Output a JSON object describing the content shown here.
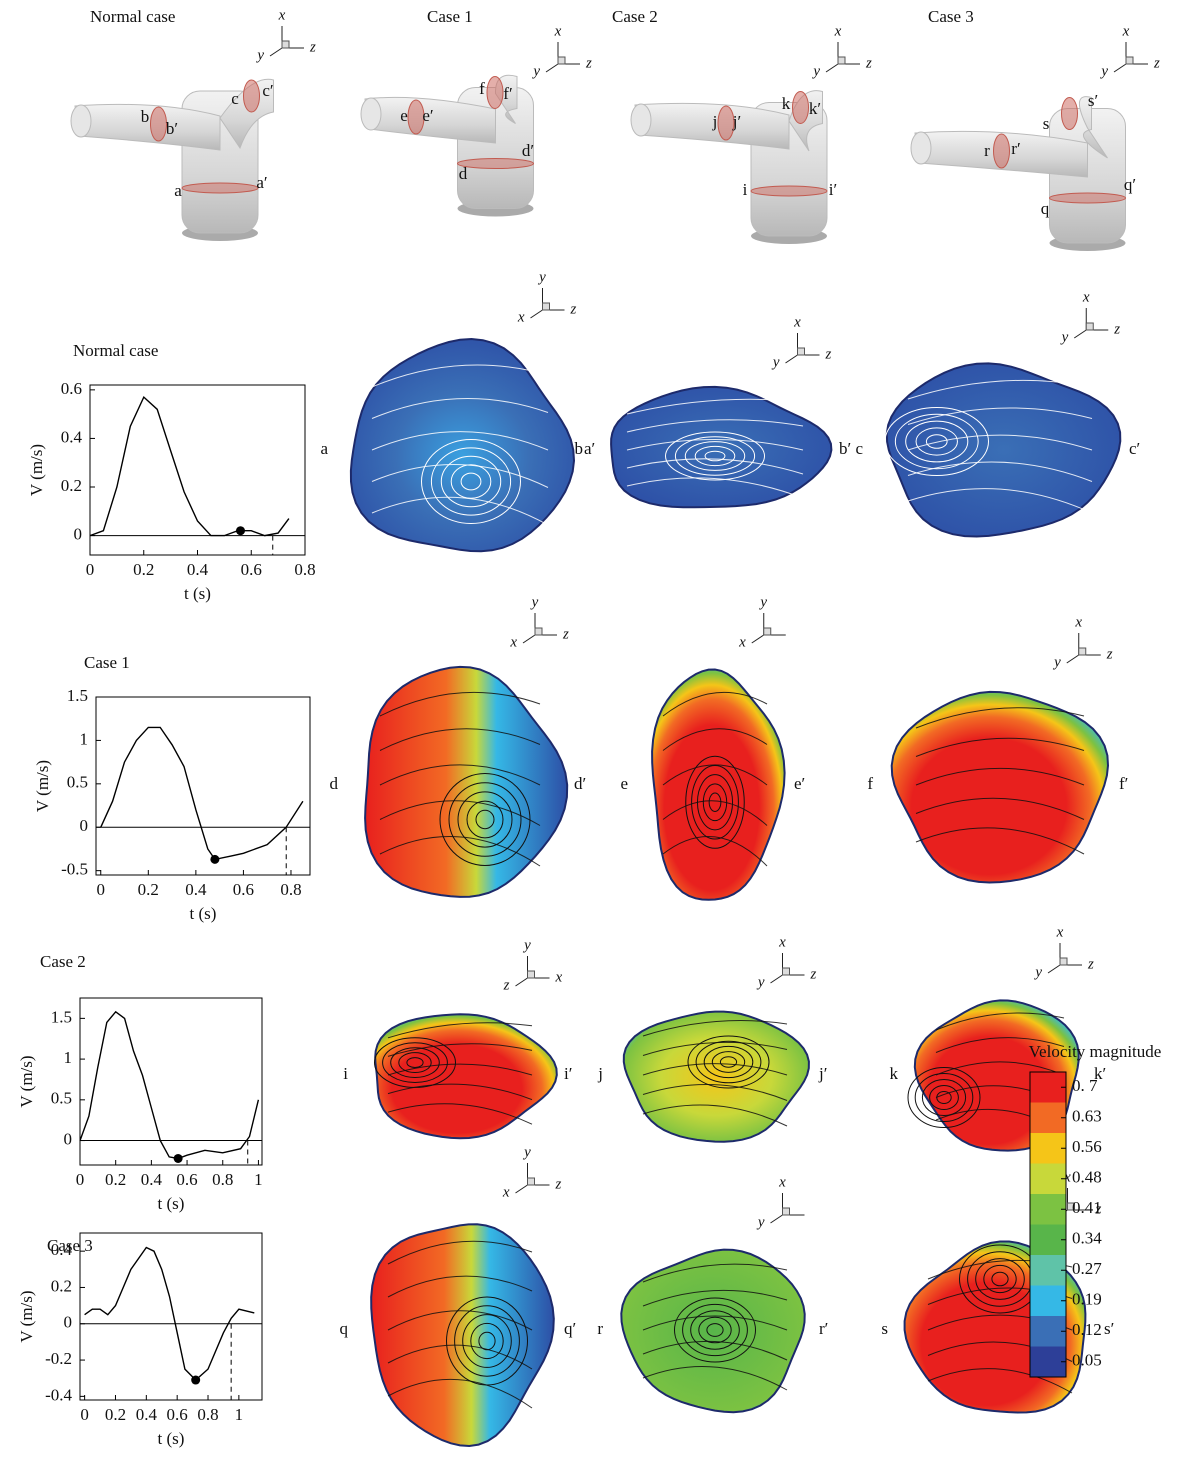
{
  "geometry": [
    {
      "title": "Normal case",
      "labels": [
        "b",
        "b′",
        "c",
        "c′",
        "a",
        "a′"
      ],
      "axes": [
        "x",
        "y",
        "z"
      ]
    },
    {
      "title": "Case 1",
      "labels": [
        "e",
        "e′",
        "f",
        "f′",
        "d",
        "d′"
      ],
      "axes": [
        "x",
        "y",
        "z"
      ]
    },
    {
      "title": "Case 2",
      "labels": [
        "j",
        "j′",
        "k",
        "k′",
        "i",
        "i′"
      ],
      "axes": [
        "x",
        "y",
        "z"
      ]
    },
    {
      "title": "Case 3",
      "labels": [
        "r",
        "r′",
        "s",
        "s′",
        "q",
        "q′"
      ],
      "axes": [
        "x",
        "y",
        "z"
      ]
    }
  ],
  "chart_data": [
    {
      "type": "line",
      "title": "Normal case",
      "xlabel": "t (s)",
      "ylabel": "V (m/s)",
      "color": "#000000",
      "x": [
        0,
        0.05,
        0.1,
        0.15,
        0.2,
        0.25,
        0.3,
        0.35,
        0.4,
        0.45,
        0.5,
        0.55,
        0.6,
        0.65,
        0.7,
        0.74
      ],
      "values": [
        0,
        0.02,
        0.2,
        0.45,
        0.57,
        0.52,
        0.35,
        0.18,
        0.06,
        0.0,
        0.0,
        0.02,
        0.02,
        0.0,
        0.01,
        0.07
      ],
      "marked_point": {
        "x": 0.56,
        "y": 0.02
      },
      "dashed_x": 0.68,
      "xlim": [
        0,
        0.8
      ],
      "ylim": [
        -0.08,
        0.62
      ],
      "xticks": [
        0,
        0.2,
        0.4,
        0.6,
        0.8
      ],
      "yticks": [
        0,
        0.2,
        0.4,
        0.6
      ]
    },
    {
      "type": "line",
      "title": "Case 1",
      "xlabel": "t (s)",
      "ylabel": "V (m/s)",
      "color": "#000000",
      "x": [
        0,
        0.05,
        0.1,
        0.15,
        0.2,
        0.25,
        0.3,
        0.35,
        0.4,
        0.45,
        0.48,
        0.55,
        0.6,
        0.7,
        0.78,
        0.85
      ],
      "values": [
        0,
        0.3,
        0.75,
        1.0,
        1.15,
        1.15,
        0.95,
        0.7,
        0.2,
        -0.25,
        -0.37,
        -0.33,
        -0.3,
        -0.2,
        0,
        0.3
      ],
      "marked_point": {
        "x": 0.48,
        "y": -0.37
      },
      "dashed_x": 0.78,
      "xlim": [
        -0.02,
        0.88
      ],
      "ylim": [
        -0.55,
        1.5
      ],
      "xticks": [
        0,
        0.2,
        0.4,
        0.6,
        0.8
      ],
      "yticks": [
        -0.5,
        0,
        0.5,
        1,
        1.5
      ]
    },
    {
      "type": "line",
      "title": "Case 2",
      "xlabel": "t (s)",
      "ylabel": "V (m/s)",
      "color": "#000000",
      "x": [
        0,
        0.05,
        0.1,
        0.15,
        0.2,
        0.25,
        0.3,
        0.35,
        0.4,
        0.45,
        0.5,
        0.55,
        0.6,
        0.7,
        0.8,
        0.9,
        0.95,
        1.0
      ],
      "values": [
        0,
        0.3,
        0.9,
        1.45,
        1.58,
        1.5,
        1.1,
        0.8,
        0.4,
        0.0,
        -0.2,
        -0.22,
        -0.18,
        -0.12,
        -0.15,
        -0.1,
        0.05,
        0.5
      ],
      "marked_point": {
        "x": 0.55,
        "y": -0.22
      },
      "dashed_x": 0.94,
      "xlim": [
        0,
        1.02
      ],
      "ylim": [
        -0.3,
        1.75
      ],
      "xticks": [
        0,
        0.2,
        0.4,
        0.6,
        0.8,
        1
      ],
      "yticks": [
        0,
        0.5,
        1,
        1.5
      ]
    },
    {
      "type": "line",
      "title": "Case 3",
      "xlabel": "t (s)",
      "ylabel": "V (m/s)",
      "color": "#000000",
      "x": [
        0,
        0.05,
        0.1,
        0.15,
        0.2,
        0.25,
        0.3,
        0.4,
        0.45,
        0.5,
        0.55,
        0.6,
        0.65,
        0.72,
        0.8,
        0.9,
        0.95,
        1.0,
        1.1
      ],
      "values": [
        0.05,
        0.08,
        0.08,
        0.05,
        0.1,
        0.2,
        0.3,
        0.42,
        0.4,
        0.3,
        0.15,
        -0.05,
        -0.25,
        -0.31,
        -0.25,
        -0.05,
        0.03,
        0.08,
        0.06
      ],
      "marked_point": {
        "x": 0.72,
        "y": -0.31
      },
      "dashed_x": 0.95,
      "xlim": [
        -0.03,
        1.15
      ],
      "ylim": [
        -0.42,
        0.5
      ],
      "xticks": [
        0,
        0.2,
        0.4,
        0.6,
        0.8,
        1
      ],
      "yticks": [
        -0.4,
        -0.2,
        0,
        0.2,
        0.4
      ]
    }
  ],
  "sections": [
    [
      {
        "left": "a",
        "right": "a′",
        "axes": [
          "y",
          "x",
          "z"
        ]
      },
      {
        "left": "b",
        "right": "b′",
        "axes": [
          "x",
          "y",
          "z"
        ]
      },
      {
        "left": "c",
        "right": "c′",
        "axes": [
          "x",
          "y",
          "z"
        ]
      }
    ],
    [
      {
        "left": "d",
        "right": "d′",
        "axes": [
          "y",
          "x",
          "z"
        ]
      },
      {
        "left": "e",
        "right": "e′",
        "axes": [
          "y",
          "x"
        ]
      },
      {
        "left": "f",
        "right": "f′",
        "axes": [
          "x",
          "y",
          "z"
        ]
      }
    ],
    [
      {
        "left": "i",
        "right": "i′",
        "axes": [
          "y",
          "z",
          "x"
        ]
      },
      {
        "left": "j",
        "right": "j′",
        "axes": [
          "x",
          "y",
          "z"
        ]
      },
      {
        "left": "k",
        "right": "k′",
        "axes": [
          "x",
          "y",
          "z"
        ]
      }
    ],
    [
      {
        "left": "q",
        "right": "q′",
        "axes": [
          "y",
          "x",
          "z"
        ]
      },
      {
        "left": "r",
        "right": "r′",
        "axes": [
          "x",
          "y"
        ]
      },
      {
        "left": "s",
        "right": "s′",
        "axes": [
          "x",
          "y",
          "z"
        ]
      }
    ]
  ],
  "colorbar": {
    "title": "Velocity magnitude",
    "ticks": [
      {
        "value": 0.7,
        "label": "0. 7"
      },
      0.63,
      0.56,
      0.48,
      0.41,
      0.34,
      0.27,
      0.19,
      0.12,
      0.05
    ],
    "colors": [
      "#e8201e",
      "#f26a24",
      "#f5c518",
      "#c8d83a",
      "#7cc242",
      "#58b54a",
      "#5fc3a8",
      "#35b8e6",
      "#3a6fb6",
      "#2d3f98"
    ]
  }
}
